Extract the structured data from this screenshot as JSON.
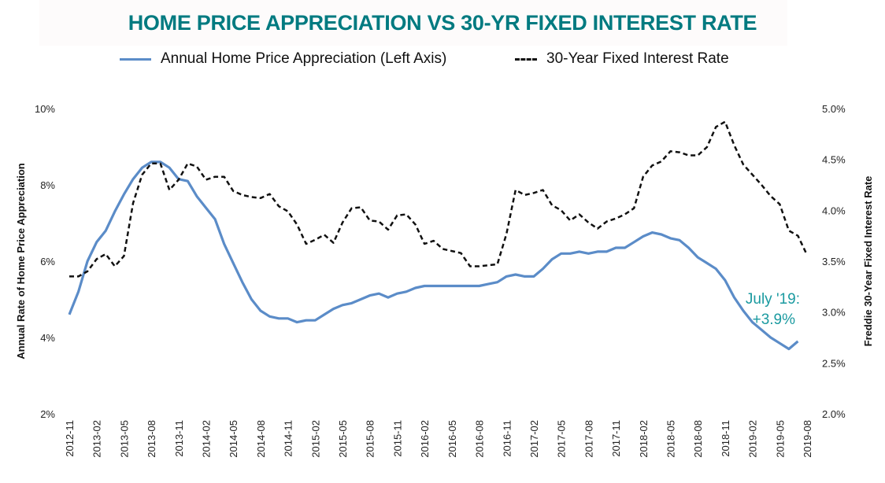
{
  "chart_data": {
    "type": "line",
    "title": "HOME PRICE APPRECIATION VS 30-YR FIXED INTEREST RATE",
    "x": [
      "2012-11",
      "2012-12",
      "2013-01",
      "2013-02",
      "2013-03",
      "2013-04",
      "2013-05",
      "2013-06",
      "2013-07",
      "2013-08",
      "2013-09",
      "2013-10",
      "2013-11",
      "2013-12",
      "2014-01",
      "2014-02",
      "2014-03",
      "2014-04",
      "2014-05",
      "2014-06",
      "2014-07",
      "2014-08",
      "2014-09",
      "2014-10",
      "2014-11",
      "2014-12",
      "2015-01",
      "2015-02",
      "2015-03",
      "2015-04",
      "2015-05",
      "2015-06",
      "2015-07",
      "2015-08",
      "2015-09",
      "2015-10",
      "2015-11",
      "2015-12",
      "2016-01",
      "2016-02",
      "2016-03",
      "2016-04",
      "2016-05",
      "2016-06",
      "2016-07",
      "2016-08",
      "2016-09",
      "2016-10",
      "2016-11",
      "2016-12",
      "2017-01",
      "2017-02",
      "2017-03",
      "2017-04",
      "2017-05",
      "2017-06",
      "2017-07",
      "2017-08",
      "2017-09",
      "2017-10",
      "2017-11",
      "2017-12",
      "2018-01",
      "2018-02",
      "2018-03",
      "2018-04",
      "2018-05",
      "2018-06",
      "2018-07",
      "2018-08",
      "2018-09",
      "2018-10",
      "2018-11",
      "2018-12",
      "2019-01",
      "2019-02",
      "2019-03",
      "2019-04",
      "2019-05",
      "2019-06",
      "2019-07",
      "2019-08"
    ],
    "xtick_labels": [
      "2012-11",
      "2013-02",
      "2013-05",
      "2013-08",
      "2013-11",
      "2014-02",
      "2014-05",
      "2014-08",
      "2014-11",
      "2015-02",
      "2015-05",
      "2015-08",
      "2015-11",
      "2016-02",
      "2016-05",
      "2016-08",
      "2016-11",
      "2017-02",
      "2017-05",
      "2017-08",
      "2017-11",
      "2018-02",
      "2018-05",
      "2018-08",
      "2018-11",
      "2019-02",
      "2019-05",
      "2019-08"
    ],
    "series": [
      {
        "name": "Annual Home Price Appreciation (Left Axis)",
        "axis": "left",
        "style": "solid",
        "color": "#5b8cc8",
        "values": [
          4.6,
          5.2,
          6.0,
          6.5,
          6.8,
          7.3,
          7.75,
          8.15,
          8.45,
          8.6,
          8.6,
          8.45,
          8.15,
          8.1,
          7.7,
          7.4,
          7.1,
          6.45,
          5.95,
          5.45,
          5.0,
          4.7,
          4.55,
          4.5,
          4.5,
          4.4,
          4.45,
          4.45,
          4.6,
          4.75,
          4.85,
          4.9,
          5.0,
          5.1,
          5.15,
          5.05,
          5.15,
          5.2,
          5.3,
          5.35,
          5.35,
          5.35,
          5.35,
          5.35,
          5.35,
          5.35,
          5.4,
          5.45,
          5.6,
          5.65,
          5.6,
          5.6,
          5.8,
          6.05,
          6.2,
          6.2,
          6.25,
          6.2,
          6.25,
          6.25,
          6.35,
          6.35,
          6.5,
          6.65,
          6.75,
          6.7,
          6.6,
          6.55,
          6.35,
          6.1,
          5.95,
          5.8,
          5.5,
          5.05,
          4.7,
          4.4,
          4.2,
          4.0,
          3.85,
          3.7,
          3.9,
          null
        ]
      },
      {
        "name": "30-Year Fixed Interest Rate",
        "axis": "right",
        "style": "dashed",
        "color": "#111111",
        "values": [
          3.35,
          3.35,
          3.4,
          3.52,
          3.57,
          3.45,
          3.55,
          4.07,
          4.35,
          4.46,
          4.46,
          4.2,
          4.3,
          4.46,
          4.43,
          4.3,
          4.33,
          4.33,
          4.19,
          4.15,
          4.13,
          4.12,
          4.16,
          4.04,
          3.99,
          3.86,
          3.67,
          3.71,
          3.76,
          3.68,
          3.88,
          4.02,
          4.03,
          3.9,
          3.89,
          3.81,
          3.95,
          3.96,
          3.86,
          3.67,
          3.7,
          3.62,
          3.6,
          3.58,
          3.45,
          3.45,
          3.46,
          3.47,
          3.77,
          4.2,
          4.15,
          4.17,
          4.2,
          4.05,
          4.0,
          3.9,
          3.96,
          3.88,
          3.82,
          3.89,
          3.92,
          3.96,
          4.02,
          4.33,
          4.44,
          4.48,
          4.58,
          4.57,
          4.54,
          4.54,
          4.62,
          4.82,
          4.87,
          4.64,
          4.45,
          4.35,
          4.25,
          4.14,
          4.06,
          3.8,
          3.75,
          3.56
        ]
      }
    ],
    "ylabel": "Annual Rate of Home Price Appreciation",
    "ylim": [
      2,
      10
    ],
    "yticks": [
      "2%",
      "4%",
      "6%",
      "8%",
      "10%"
    ],
    "yticks_values": [
      2,
      4,
      6,
      8,
      10
    ],
    "y2label": "Freddie 30-Year Fixed Interest Rate",
    "y2lim": [
      2.0,
      5.0
    ],
    "y2ticks": [
      "2.0%",
      "2.5%",
      "3.0%",
      "3.5%",
      "4.0%",
      "4.5%",
      "5.0%"
    ],
    "y2ticks_values": [
      2.0,
      2.5,
      3.0,
      3.5,
      4.0,
      4.5,
      5.0
    ],
    "grid": false,
    "legend": "top-center",
    "annotations": [
      {
        "text_line1": "July '19:",
        "text_line2": "+3.9%",
        "at": "2019-07",
        "color": "#1a9aa0"
      }
    ]
  }
}
